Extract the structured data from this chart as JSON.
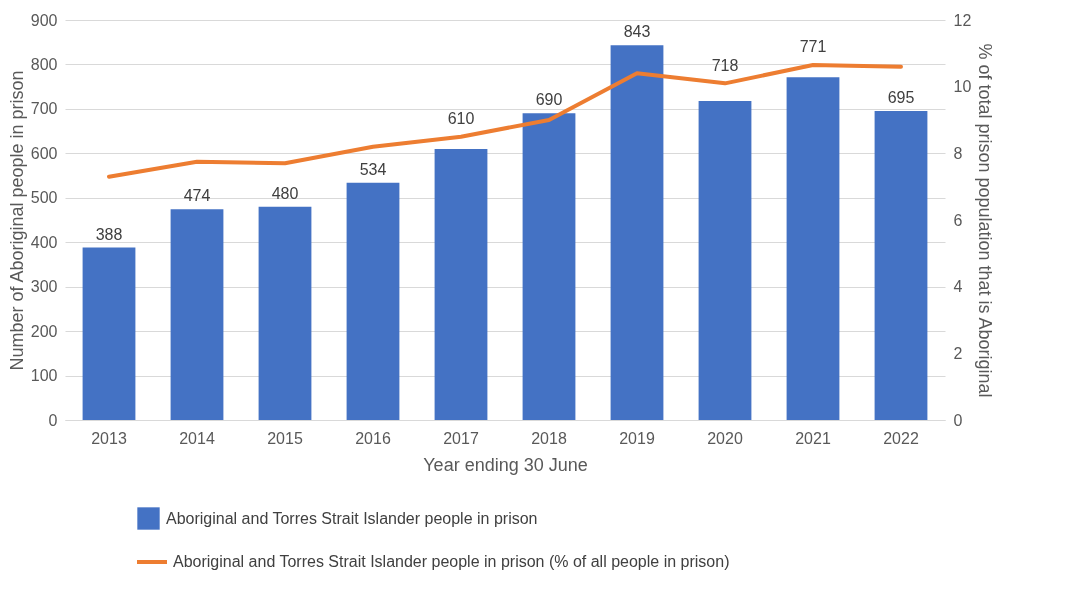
{
  "chart_data": {
    "type": "bar",
    "xlabel": "Year ending 30 June",
    "ylabel": "Number of Aboriginal people in prison",
    "y2label": "% of total prison population that is Aboriginal",
    "categories": [
      "2013",
      "2014",
      "2015",
      "2016",
      "2017",
      "2018",
      "2019",
      "2020",
      "2021",
      "2022"
    ],
    "series": [
      {
        "name": "Aboriginal and Torres Strait Islander people in prison",
        "color": "#4472c4",
        "values": [
          388,
          474,
          480,
          534,
          610,
          690,
          843,
          718,
          771,
          695
        ],
        "value_labels": [
          "388",
          "474",
          "480",
          "534",
          "610",
          "690",
          "843",
          "718",
          "771",
          "695"
        ]
      },
      {
        "name": "Aboriginal and Torres Strait Islander people in prison (% of all people in prison)",
        "type": "line",
        "axis": "y2",
        "color": "#ed7d31",
        "values": [
          7.3,
          7.75,
          7.7,
          8.2,
          8.5,
          9.0,
          10.4,
          10.1,
          10.65,
          10.6
        ]
      }
    ],
    "ylim": [
      0,
      900
    ],
    "yticks": [
      0,
      100,
      200,
      300,
      400,
      500,
      600,
      700,
      800,
      900
    ],
    "y2lim": [
      0,
      12
    ],
    "y2ticks": [
      0,
      2,
      4,
      6,
      8,
      10,
      12
    ],
    "grid": "y",
    "legend": "bottom",
    "marker": "none",
    "line_style": "solid"
  }
}
